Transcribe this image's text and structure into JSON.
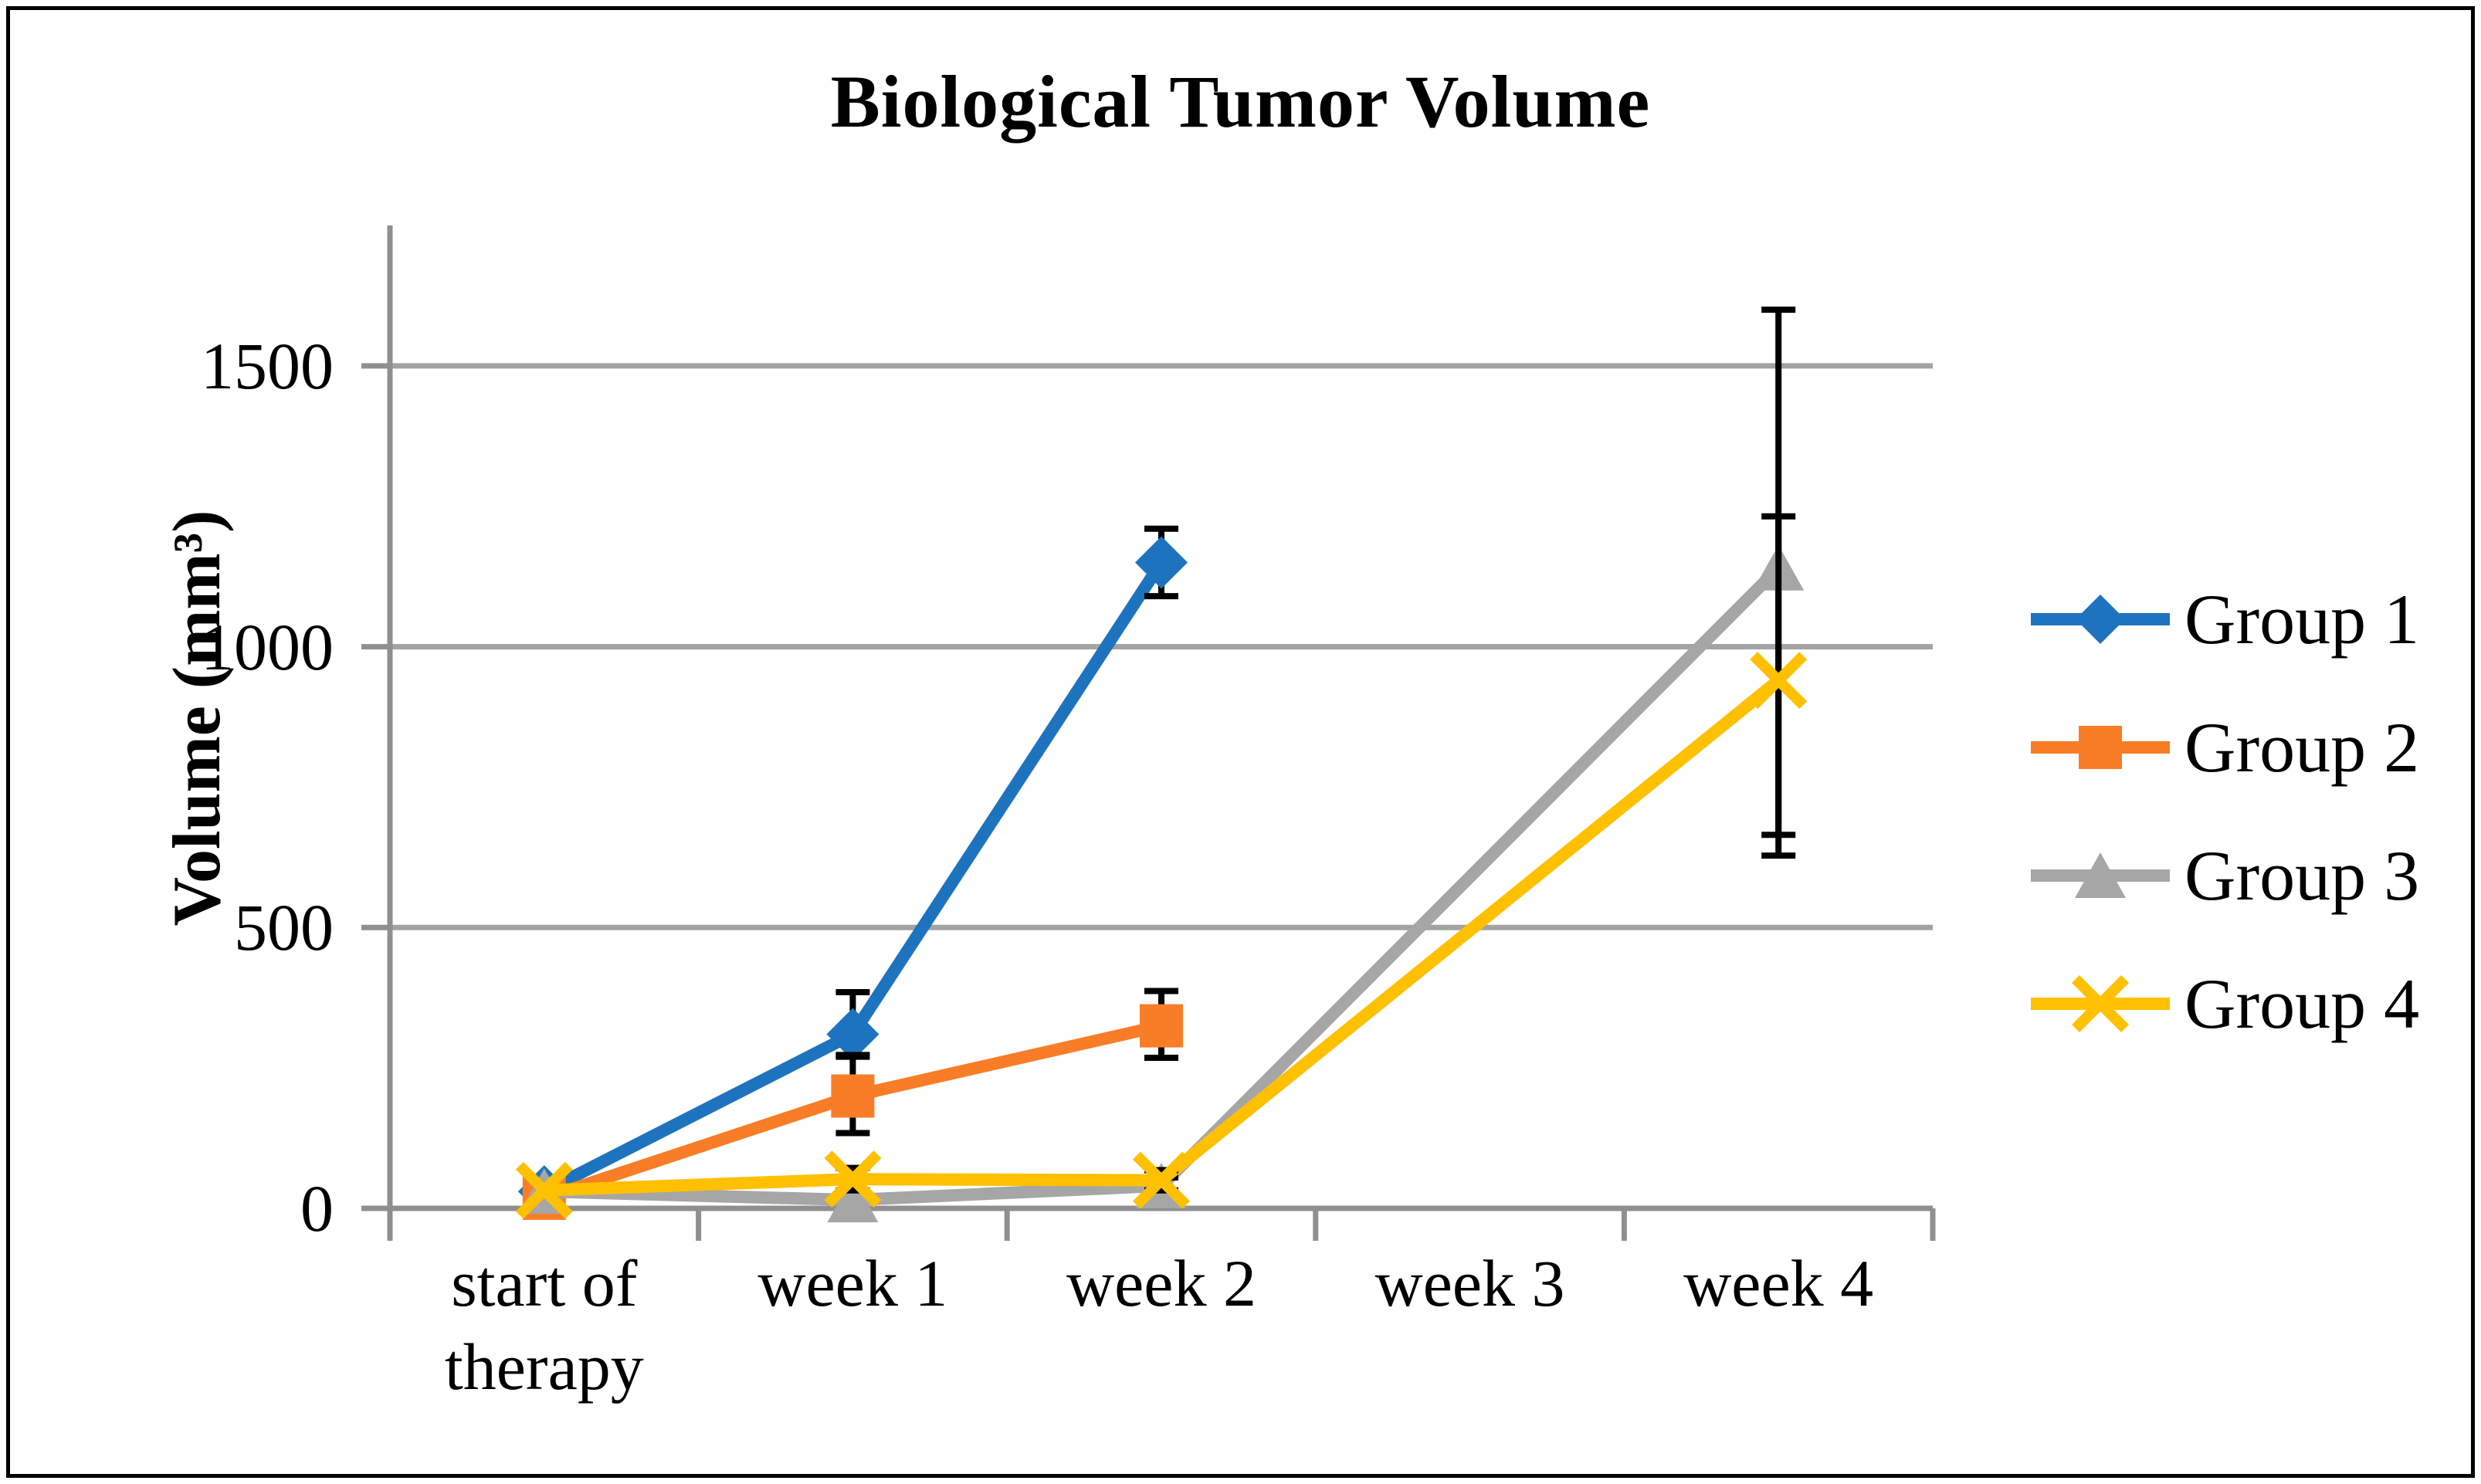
{
  "chart_data": {
    "type": "line",
    "title": "Biological Tumor Volume",
    "ylabel": "Volume (mm³)",
    "categories": [
      "start of therapy",
      "week 1",
      "week 2",
      "week 3",
      "week 4"
    ],
    "y_ticks": [
      0,
      500,
      1000,
      1500
    ],
    "ylim": [
      0,
      1750
    ],
    "grid": true,
    "legend_position": "right",
    "series": [
      {
        "name": "Group 1",
        "color": "#1e73be",
        "marker": "diamond",
        "values": [
          30,
          310,
          1150,
          null,
          null
        ],
        "err_plus": [
          null,
          75,
          60,
          null,
          null
        ],
        "err_minus": [
          null,
          40,
          60,
          null,
          null
        ]
      },
      {
        "name": "Group 2",
        "color": "#f97d27",
        "marker": "square",
        "values": [
          18,
          200,
          325,
          null,
          null
        ],
        "err_plus": [
          null,
          73,
          62,
          null,
          null
        ],
        "err_minus": [
          null,
          66,
          57,
          null,
          null
        ]
      },
      {
        "name": "Group 3",
        "color": "#a6a6a6",
        "marker": "triangle",
        "values": [
          30,
          15,
          40,
          null,
          1140
        ],
        "err_plus": [
          null,
          null,
          15,
          null,
          460
        ],
        "err_minus": [
          null,
          null,
          15,
          null,
          475
        ]
      },
      {
        "name": "Group 4",
        "color": "#ffc000",
        "marker": "x",
        "values": [
          32,
          52,
          50,
          null,
          940
        ],
        "err_plus": [
          null,
          20,
          18,
          null,
          292
        ],
        "err_minus": [
          null,
          20,
          18,
          null,
          312
        ]
      }
    ]
  },
  "theme": {
    "background": "#ffffff",
    "border_color": "#000000",
    "text_color": "#000000",
    "grid_color": "#a3a3a3",
    "axis_color": "#8f8f8f",
    "error_bar_color": "#000000"
  }
}
